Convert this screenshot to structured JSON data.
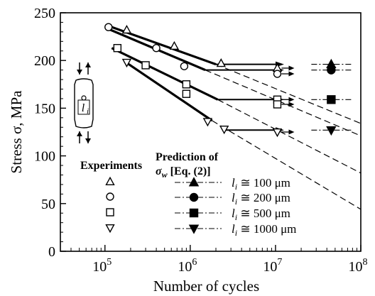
{
  "chart_data": {
    "type": "scatter",
    "xlabel": "Number of cycles",
    "ylabel": "Stress σ, MPa",
    "xscale": "log",
    "xlim": [
      30000,
      100000000
    ],
    "ylim": [
      0,
      250
    ],
    "x_ticks": [
      {
        "value": 100000,
        "base": "10",
        "exp": "5"
      },
      {
        "value": 1000000,
        "base": "10",
        "exp": "6"
      },
      {
        "value": 10000000,
        "base": "10",
        "exp": "7"
      },
      {
        "value": 100000000,
        "base": "10",
        "exp": "8"
      }
    ],
    "y_ticks": [
      0,
      50,
      100,
      150,
      200,
      250
    ],
    "grid": false,
    "legend_experiments_title": "Experiments",
    "legend_prediction_title": "Prediction of",
    "legend_prediction_eq": "σw [Eq. (2)]",
    "series": [
      {
        "name": "li ≅ 100 μm",
        "marker": "triangle-up",
        "experiments": [
          [
            180000,
            232
          ],
          [
            650000,
            215
          ],
          [
            2300000,
            197
          ],
          [
            10500000,
            192
          ]
        ],
        "runouts": [
          10500000
        ],
        "fit": [
          [
            120000,
            235
          ],
          [
            2000000,
            196
          ]
        ],
        "plateau": [
          [
            2000000,
            196
          ],
          [
            10000000,
            196
          ]
        ],
        "prediction_sigma_w": 196,
        "prediction_dashed": [
          [
            2000000,
            196
          ],
          [
            100000000,
            134
          ]
        ]
      },
      {
        "name": "li ≅ 200 μm",
        "marker": "circle",
        "experiments": [
          [
            110000,
            235
          ],
          [
            400000,
            213
          ],
          [
            850000,
            194
          ],
          [
            10500000,
            186
          ]
        ],
        "runouts": [
          10500000
        ],
        "fit": [
          [
            110000,
            233
          ],
          [
            1500000,
            190
          ]
        ],
        "plateau": [
          [
            1500000,
            190
          ],
          [
            10000000,
            190
          ]
        ],
        "prediction_sigma_w": 190,
        "prediction_dashed": [
          [
            1500000,
            190
          ],
          [
            100000000,
            121
          ]
        ]
      },
      {
        "name": "li ≅ 500 μm",
        "marker": "square",
        "experiments": [
          [
            140000,
            213
          ],
          [
            300000,
            195
          ],
          [
            900000,
            175
          ],
          [
            900000,
            165
          ],
          [
            10500000,
            159
          ],
          [
            10500000,
            154
          ]
        ],
        "runouts": [
          10500000
        ],
        "fit": [
          [
            120000,
            213
          ],
          [
            2100000,
            159
          ]
        ],
        "plateau": [
          [
            2100000,
            159
          ],
          [
            10000000,
            159
          ]
        ],
        "prediction_sigma_w": 159,
        "prediction_dashed": [
          [
            2100000,
            159
          ],
          [
            100000000,
            82
          ]
        ]
      },
      {
        "name": "li ≅ 1000 μm",
        "marker": "triangle-down",
        "experiments": [
          [
            180000,
            198
          ],
          [
            1600000,
            136
          ],
          [
            2500000,
            128
          ],
          [
            10500000,
            125
          ]
        ],
        "runouts": [
          10500000
        ],
        "fit": [
          [
            170000,
            199
          ],
          [
            1800000,
            137
          ]
        ],
        "plateau": [
          [
            2400000,
            127
          ],
          [
            10000000,
            127
          ]
        ],
        "prediction_sigma_w": 127,
        "prediction_dashed": [
          [
            1800000,
            137
          ],
          [
            100000000,
            44
          ]
        ]
      }
    ]
  },
  "inset": {
    "specimen_label": "li",
    "specimen_label_sub": "i"
  },
  "colors": {
    "ink": "#000000",
    "background": "#ffffff"
  }
}
